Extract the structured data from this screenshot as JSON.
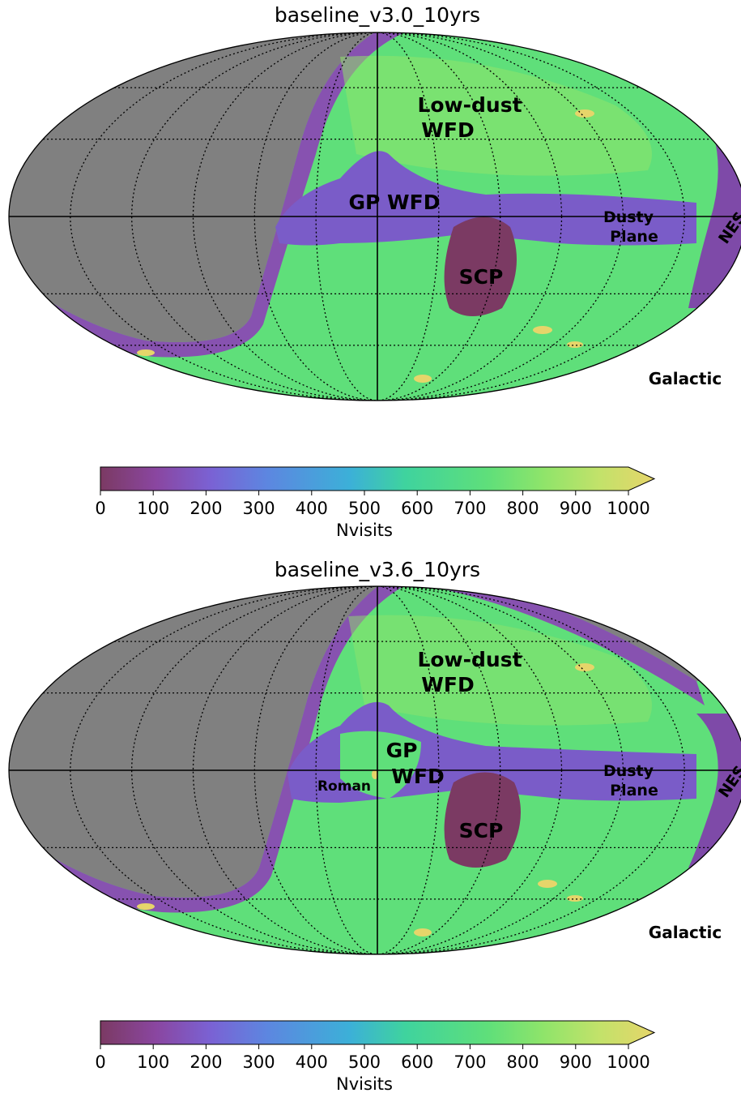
{
  "chart_data": [
    {
      "type": "heatmap",
      "title": "baseline_v3.0_10yrs",
      "projection": "mollweide",
      "coordinate_frame": "Galactic",
      "colorbar": {
        "label": "Nvisits",
        "ticks": [
          "0",
          "100",
          "200",
          "300",
          "400",
          "500",
          "600",
          "700",
          "800",
          "900",
          "1000"
        ],
        "range": [
          0,
          1000
        ],
        "extend": "max",
        "colors": [
          "#7b3a63",
          "#8a46a0",
          "#7a62d4",
          "#5d86e0",
          "#3cb0d8",
          "#3fd39e",
          "#5fdf7a",
          "#8fe46a",
          "#c2e26a",
          "#e6d56a"
        ]
      },
      "background_color": "#808080",
      "annotations": [
        "Low-dust",
        "WFD",
        "GP WFD",
        "Dusty",
        "Plane",
        "SCP",
        "NES",
        "Galactic"
      ]
    },
    {
      "type": "heatmap",
      "title": "baseline_v3.6_10yrs",
      "projection": "mollweide",
      "coordinate_frame": "Galactic",
      "colorbar": {
        "label": "Nvisits",
        "ticks": [
          "0",
          "100",
          "200",
          "300",
          "400",
          "500",
          "600",
          "700",
          "800",
          "900",
          "1000"
        ],
        "range": [
          0,
          1000
        ],
        "extend": "max",
        "colors": [
          "#7b3a63",
          "#8a46a0",
          "#7a62d4",
          "#5d86e0",
          "#3cb0d8",
          "#3fd39e",
          "#5fdf7a",
          "#8fe46a",
          "#c2e26a",
          "#e6d56a"
        ]
      },
      "background_color": "#808080",
      "annotations": [
        "Low-dust",
        "WFD",
        "GP",
        "WFD",
        "Roman",
        "Dusty",
        "Plane",
        "SCP",
        "NES",
        "Galactic"
      ]
    }
  ]
}
